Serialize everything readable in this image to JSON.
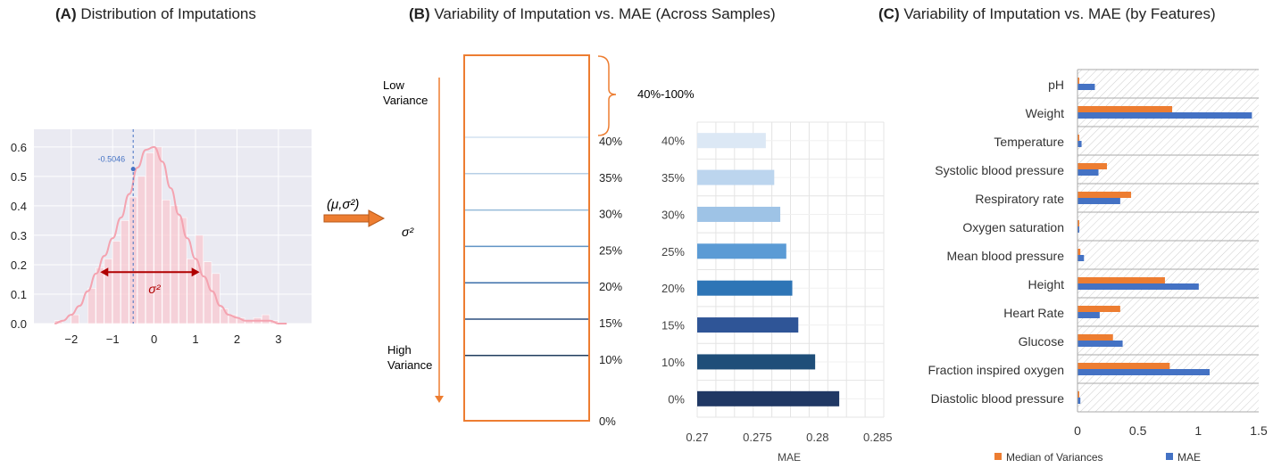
{
  "panels": {
    "a": {
      "letter": "(A)",
      "title": "Distribution of Imputations"
    },
    "b": {
      "letter": "(B)",
      "title": "Variability of Imputation vs. MAE (Across Samples)"
    },
    "c": {
      "letter": "(C)",
      "title": "Variability of Imputation vs. MAE (by Features)"
    }
  },
  "arrow_label": "(μ,σ²)",
  "chart_data": [
    {
      "id": "distribution",
      "type": "area",
      "title": "Distribution of Imputations",
      "x_ticks": [
        "−2",
        "−1",
        "0",
        "1",
        "2",
        "3"
      ],
      "y_ticks": [
        "0.0",
        "0.1",
        "0.2",
        "0.3",
        "0.4",
        "0.5",
        "0.6"
      ],
      "xlim": [
        -2.9,
        3.8
      ],
      "ylim": [
        0,
        0.66
      ],
      "grid": true,
      "histogram": {
        "bin_edges": [
          -2.4,
          -2.2,
          -2.0,
          -1.8,
          -1.6,
          -1.4,
          -1.2,
          -1.0,
          -0.8,
          -0.6,
          -0.4,
          -0.2,
          0.0,
          0.2,
          0.4,
          0.6,
          0.8,
          1.0,
          1.2,
          1.4,
          1.6,
          1.8,
          2.0,
          2.2,
          2.4,
          2.6,
          2.8,
          3.0
        ],
        "densities": [
          0.01,
          0.0,
          0.03,
          0.0,
          0.12,
          0.19,
          0.22,
          0.28,
          0.35,
          0.43,
          0.5,
          0.58,
          0.6,
          0.42,
          0.4,
          0.36,
          0.22,
          0.3,
          0.21,
          0.17,
          0.05,
          0.03,
          0.02,
          0.01,
          0.02,
          0.03,
          0.01
        ]
      },
      "kde": {
        "x": [
          -2.4,
          -2.2,
          -2.0,
          -1.8,
          -1.6,
          -1.4,
          -1.2,
          -1.0,
          -0.8,
          -0.6,
          -0.4,
          -0.2,
          0.0,
          0.2,
          0.4,
          0.6,
          0.8,
          1.0,
          1.2,
          1.4,
          1.6,
          1.8,
          2.0,
          2.2,
          2.4,
          2.6,
          2.8,
          3.0,
          3.2
        ],
        "y": [
          0.0,
          0.01,
          0.03,
          0.06,
          0.11,
          0.17,
          0.23,
          0.29,
          0.36,
          0.44,
          0.53,
          0.59,
          0.6,
          0.55,
          0.46,
          0.37,
          0.29,
          0.22,
          0.16,
          0.11,
          0.06,
          0.03,
          0.02,
          0.01,
          0.01,
          0.01,
          0.01,
          0.0,
          0.0
        ]
      },
      "mean": {
        "x": -0.5046,
        "y": 0.525,
        "label": "-0.5046"
      },
      "spread": {
        "from": -1.3,
        "to": 1.1,
        "y": 0.175,
        "label": "σ²"
      }
    },
    {
      "id": "sample-bins",
      "type": "diagram",
      "top_label": "Low Variance",
      "bottom_label": "High Variance",
      "axis_label": "σ²",
      "brace_label": "40%-100%",
      "levels": [
        "40%",
        "35%",
        "30%",
        "25%",
        "20%",
        "15%",
        "10%",
        "0%"
      ],
      "level_colors": [
        "#d3e2f0",
        "#b7cfe6",
        "#95bad9",
        "#5f93c5",
        "#3b6fa9",
        "#2b4f7e",
        "#203c5e"
      ]
    },
    {
      "id": "mae-by-bin",
      "type": "bar",
      "orientation": "horizontal",
      "categories": [
        "40%",
        "35%",
        "30%",
        "25%",
        "20%",
        "15%",
        "10%",
        "0%"
      ],
      "values": [
        0.2757,
        0.2764,
        0.2769,
        0.2774,
        0.2779,
        0.2784,
        0.2798,
        0.2818
      ],
      "colors": [
        "#dce8f5",
        "#bcd5ee",
        "#9ec3e6",
        "#5b9bd5",
        "#2e75b6",
        "#2f5597",
        "#1f4e79",
        "#203864"
      ],
      "xlabel": "MAE",
      "x_ticks": [
        "0.27",
        "0.275",
        "0.28",
        "0.285"
      ],
      "xlim": [
        0.27,
        0.2855
      ],
      "grid": true
    },
    {
      "id": "mae-by-feature",
      "type": "bar",
      "orientation": "horizontal",
      "categories": [
        "pH",
        "Weight",
        "Temperature",
        "Systolic blood pressure",
        "Respiratory rate",
        "Oxygen saturation",
        "Mean blood pressure",
        "Height",
        "Heart Rate",
        "Glucose",
        "Fraction inspired oxygen",
        "Diastolic blood pressure"
      ],
      "series": [
        {
          "name": "Median of Variances",
          "color": "#ed7d31",
          "values": [
            0.01,
            0.78,
            0.01,
            0.24,
            0.44,
            0.005,
            0.02,
            0.72,
            0.35,
            0.29,
            0.76,
            0.01
          ]
        },
        {
          "name": "MAE",
          "color": "#4472c4",
          "values": [
            0.14,
            1.44,
            0.03,
            0.17,
            0.35,
            0.005,
            0.05,
            1.0,
            0.18,
            0.37,
            1.09,
            0.02
          ]
        }
      ],
      "x_ticks": [
        "0",
        "0.5",
        "1",
        "1.5"
      ],
      "xlim": [
        0,
        1.5
      ],
      "legend_position": "bottom"
    }
  ]
}
